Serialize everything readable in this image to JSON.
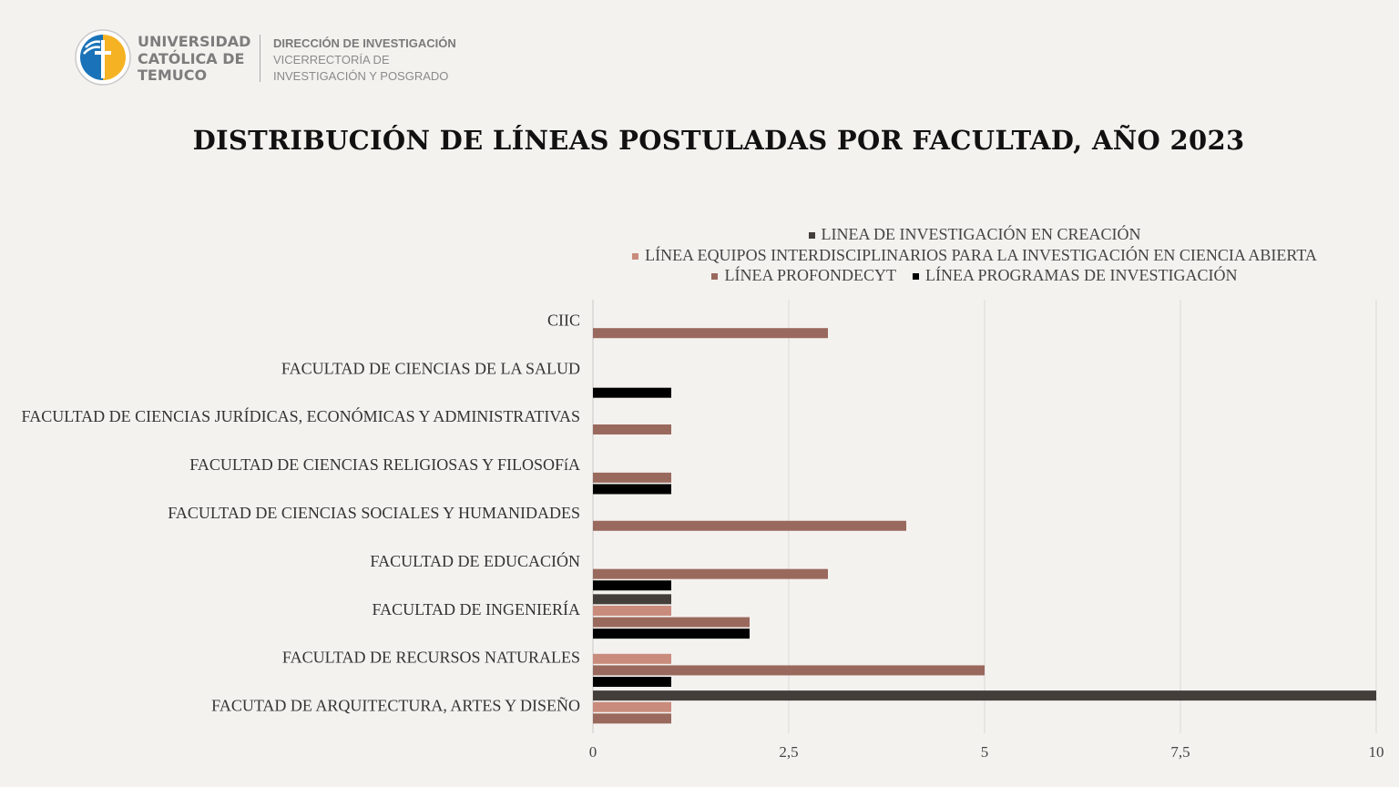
{
  "header": {
    "university_name": [
      "UNIVERSIDAD",
      "CATÓLICA DE",
      "TEMUCO"
    ],
    "department": "DIRECCIÓN DE INVESTIGACIÓN",
    "subdepartment": [
      "VICERRECTORÍA DE",
      "INVESTIGACIÓN Y POSGRADO"
    ]
  },
  "colors": {
    "background": "#f4f2ef",
    "creacion": "#433e3a",
    "equipos": "#c98b7c",
    "profondecyt": "#9a695d",
    "programas": "#000000",
    "logo_blue": "#1a73b8",
    "logo_yellow": "#f5b324"
  },
  "chart_data": {
    "type": "bar",
    "orientation": "horizontal",
    "title": "DISTRIBUCIÓN DE LÍNEAS POSTULADAS POR FACULTAD, AÑO 2023",
    "categories": [
      "CIIC",
      "FACULTAD DE CIENCIAS DE LA SALUD",
      "FACULTAD DE CIENCIAS JURÍDICAS, ECONÓMICAS Y ADMINISTRATIVAS",
      "FACULTAD DE CIENCIAS RELIGIOSAS Y FILOSOFíA",
      "FACULTAD DE CIENCIAS SOCIALES Y HUMANIDADES",
      "FACULTAD DE EDUCACIÓN",
      "FACULTAD DE INGENIERÍA",
      "FACULTAD DE RECURSOS NATURALES",
      "FACUTAD DE ARQUITECTURA, ARTES Y DISEÑO"
    ],
    "series": [
      {
        "name": "LINEA DE INVESTIGACIÓN EN CREACIÓN",
        "color": "#433e3a",
        "values": [
          0,
          0,
          0,
          0,
          0,
          0,
          1,
          0,
          10
        ]
      },
      {
        "name": "LÍNEA EQUIPOS INTERDISCIPLINARIOS PARA LA INVESTIGACIÓN EN CIENCIA ABIERTA",
        "color": "#c98b7c",
        "values": [
          0,
          0,
          0,
          0,
          0,
          0,
          1,
          1,
          1
        ]
      },
      {
        "name": "LÍNEA PROFONDECYT",
        "color": "#9a695d",
        "values": [
          3,
          0,
          1,
          1,
          4,
          3,
          2,
          5,
          1
        ]
      },
      {
        "name": "LÍNEA PROGRAMAS DE INVESTIGACIÓN",
        "color": "#000000",
        "values": [
          0,
          1,
          0,
          1,
          0,
          1,
          2,
          1,
          0
        ]
      }
    ],
    "xlim": [
      0,
      10
    ],
    "xticks": [
      "0",
      "2,5",
      "5",
      "7,5",
      "10"
    ],
    "xtick_values": [
      0,
      2.5,
      5,
      7.5,
      10
    ],
    "grid": true,
    "legend_placement": "top"
  }
}
